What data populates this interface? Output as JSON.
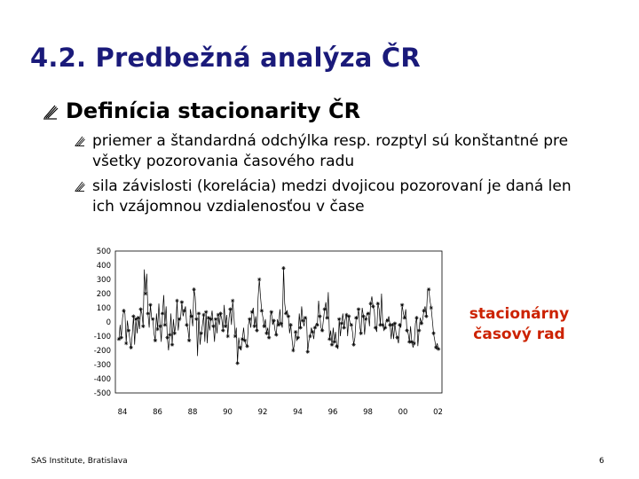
{
  "slide": {
    "title": "4.2. Predbežná analýza ČR",
    "heading": "Definícia stacionarity ČR",
    "bullets": [
      "priemer a štandardná odchýlka resp. rozptyl sú konštantné pre všetky pozorovania časového radu",
      "sila závislosti (korelácia) medzi dvojicou pozorovaní je daná len ich vzájomnou vzdialenosťou v čase"
    ],
    "annotation_line1": "stacionárny",
    "annotation_line2": "časový rad",
    "footer_left": "SAS Institute, Bratislava",
    "footer_right": "6"
  },
  "chart_data": {
    "type": "line",
    "marker": "star",
    "ylim": [
      -500,
      500
    ],
    "xlim": [
      84,
      103
    ],
    "yticks": [
      "500",
      "400",
      "300",
      "200",
      "100",
      "0",
      "-100",
      "-200",
      "-300",
      "-400",
      "-500"
    ],
    "xticks": [
      "84",
      "86",
      "88",
      "90",
      "92",
      "94",
      "96",
      "98",
      "00",
      "02"
    ],
    "series": [
      {
        "values": [
          -120,
          -20,
          -110,
          30,
          80,
          60,
          -150,
          10,
          -60,
          -120,
          -180,
          -90,
          40,
          -160,
          20,
          -80,
          30,
          -50,
          90,
          60,
          -30,
          370,
          200,
          340,
          60,
          -40,
          120,
          30,
          20,
          -80,
          -130,
          60,
          -50,
          130,
          -30,
          -140,
          60,
          190,
          -20,
          110,
          -110,
          -200,
          -90,
          60,
          -160,
          20,
          -80,
          -20,
          150,
          -60,
          20,
          30,
          140,
          40,
          80,
          110,
          -20,
          -50,
          -130,
          90,
          40,
          -30,
          230,
          180,
          20,
          -240,
          60,
          -160,
          -80,
          -20,
          50,
          -140,
          70,
          -150,
          30,
          -60,
          20,
          80,
          -30,
          -140,
          20,
          -80,
          50,
          -20,
          60,
          20,
          -60,
          120,
          -30,
          50,
          -100,
          30,
          90,
          -20,
          150,
          50,
          -100,
          -40,
          -290,
          -110,
          -180,
          -200,
          -120,
          -40,
          -130,
          -160,
          -170,
          -20,
          20,
          -40,
          70,
          100,
          -30,
          40,
          -60,
          170,
          300,
          180,
          80,
          30,
          -30,
          20,
          -80,
          -40,
          -110,
          40,
          70,
          -20,
          10,
          -60,
          -90,
          20,
          -20,
          90,
          -10,
          -40,
          380,
          130,
          60,
          80,
          40,
          -80,
          -20,
          -120,
          -200,
          -160,
          -70,
          -130,
          -110,
          60,
          -40,
          110,
          10,
          -30,
          30,
          20,
          -210,
          -130,
          -100,
          -40,
          -70,
          -120,
          -40,
          -10,
          -20,
          150,
          40,
          -40,
          -60,
          20,
          90,
          140,
          30,
          210,
          -120,
          -60,
          -160,
          -40,
          -140,
          -70,
          -170,
          -190,
          20,
          -100,
          -10,
          60,
          -40,
          20,
          50,
          -100,
          40,
          -10,
          -20,
          -70,
          -160,
          -110,
          30,
          20,
          90,
          -30,
          -80,
          100,
          40,
          -90,
          20,
          60,
          60,
          -30,
          130,
          180,
          110,
          80,
          -40,
          -70,
          130,
          90,
          -20,
          200,
          -20,
          -60,
          -40,
          20,
          10,
          40,
          -20,
          -120,
          -20,
          -120,
          -10,
          -80,
          -110,
          -150,
          -20,
          -40,
          120,
          60,
          30,
          90,
          -60,
          -80,
          -140,
          -30,
          -140,
          -180,
          -150,
          -10,
          30,
          -170,
          -60,
          30,
          -10,
          20,
          80,
          110,
          40,
          220,
          230,
          150,
          100,
          10,
          -80,
          -130,
          -180,
          -150,
          -190
        ]
      }
    ]
  }
}
